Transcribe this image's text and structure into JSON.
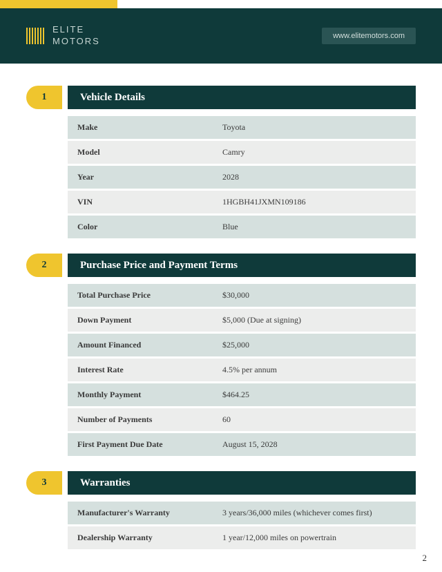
{
  "brand": {
    "line1": "ELITE",
    "line2": "MOTORS",
    "url": "www.elitemotors.com"
  },
  "colors": {
    "headerBg": "#0f3a3a",
    "accent": "#efc52e",
    "rowAlt": "#d5e0de",
    "rowNorm": "#ecedec",
    "pillBg": "#2a5454"
  },
  "sections": [
    {
      "num": "1",
      "title": "Vehicle Details",
      "rows": [
        {
          "label": "Make",
          "value": "Toyota"
        },
        {
          "label": "Model",
          "value": "Camry"
        },
        {
          "label": "Year",
          "value": "2028"
        },
        {
          "label": "VIN",
          "value": "1HGBH41JXMN109186"
        },
        {
          "label": "Color",
          "value": "Blue"
        }
      ]
    },
    {
      "num": "2",
      "title": "Purchase Price and Payment Terms",
      "rows": [
        {
          "label": "Total Purchase Price",
          "value": "$30,000"
        },
        {
          "label": "Down Payment",
          "value": "$5,000 (Due at signing)"
        },
        {
          "label": "Amount Financed",
          "value": "$25,000"
        },
        {
          "label": "Interest Rate",
          "value": "4.5% per annum"
        },
        {
          "label": "Monthly Payment",
          "value": "$464.25"
        },
        {
          "label": "Number of Payments",
          "value": "60"
        },
        {
          "label": "First Payment Due Date",
          "value": "August 15, 2028"
        }
      ]
    },
    {
      "num": "3",
      "title": "Warranties",
      "rows": [
        {
          "label": "Manufacturer's Warranty",
          "value": "3 years/36,000 miles (whichever comes first)"
        },
        {
          "label": "Dealership Warranty",
          "value": "1 year/12,000 miles on powertrain"
        }
      ]
    }
  ],
  "pageNumber": "2"
}
